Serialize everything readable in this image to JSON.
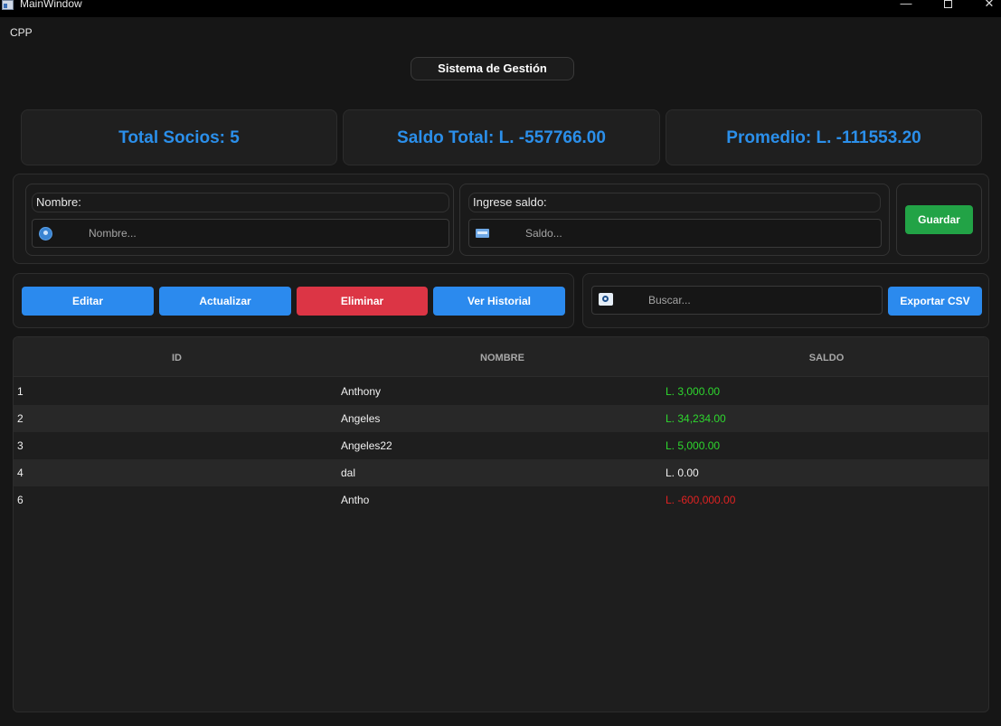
{
  "window": {
    "title": "MainWindow"
  },
  "menu": {
    "items": [
      "CPP"
    ]
  },
  "header": {
    "title": "Sistema de Gestión"
  },
  "stats": {
    "total_socios": "Total Socios: 5",
    "saldo_total": "Saldo Total: L. -557766.00",
    "promedio": "Promedio: L. -111553.20"
  },
  "form": {
    "nombre_label": "Nombre:",
    "nombre_placeholder": "Nombre...",
    "saldo_label": "Ingrese saldo:",
    "saldo_placeholder": "Saldo...",
    "guardar": "Guardar"
  },
  "actions": {
    "editar": "Editar",
    "actualizar": "Actualizar",
    "eliminar": "Eliminar",
    "ver_historial": "Ver Historial",
    "search_placeholder": "Buscar...",
    "exportar": "Exportar CSV"
  },
  "colors": {
    "accent": "#2b8aee",
    "danger": "#dc3545",
    "success": "#22a346",
    "positive": "#2ed82e",
    "negative": "#e02222"
  },
  "table": {
    "columns": [
      "ID",
      "NOMBRE",
      "SALDO"
    ],
    "rows": [
      {
        "id": "1",
        "nombre": "Anthony",
        "saldo": "L. 3,000.00",
        "sign": "pos"
      },
      {
        "id": "2",
        "nombre": "Angeles",
        "saldo": "L. 34,234.00",
        "sign": "pos"
      },
      {
        "id": "3",
        "nombre": "Angeles22",
        "saldo": "L. 5,000.00",
        "sign": "pos"
      },
      {
        "id": "4",
        "nombre": "dal",
        "saldo": "L. 0.00",
        "sign": "zero"
      },
      {
        "id": "6",
        "nombre": "Antho",
        "saldo": "L. -600,000.00",
        "sign": "neg"
      }
    ]
  }
}
